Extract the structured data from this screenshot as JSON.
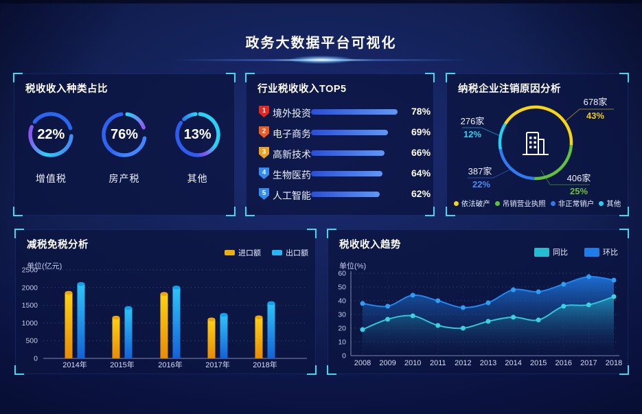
{
  "page": {
    "title": "政务大数据平台可视化"
  },
  "accent": {
    "bracket": "#38dcf5",
    "panel_border": "#2e50be"
  },
  "chart_data": [
    {
      "id": "tax_type_rings",
      "type": "pie",
      "title": "税收收入种类占比",
      "rings": [
        {
          "label": "增值税",
          "value": 22,
          "display": "22%",
          "colors": [
            "#2a66f0",
            "#2bd2f8",
            "#8a55f0",
            "#3f8ef5"
          ]
        },
        {
          "label": "房产税",
          "value": 76,
          "display": "76%",
          "colors": [
            "#2d64f2",
            "#2bd0f5",
            "#9558f2",
            "#3f86ff"
          ]
        },
        {
          "label": "其他",
          "value": 13,
          "display": "13%",
          "colors": [
            "#2e7cf5",
            "#2bd0f5",
            "#8a55f0",
            "#2d5cf0"
          ]
        }
      ]
    },
    {
      "id": "industry_top5",
      "type": "bar",
      "title": "行业税收收入TOP5",
      "items": [
        {
          "rank": "1",
          "label": "境外投资",
          "value": 78,
          "pct": "78%",
          "badge_color": "#e6271f"
        },
        {
          "rank": "2",
          "label": "电子商务",
          "value": 69,
          "pct": "69%",
          "badge_color": "#ef5a21"
        },
        {
          "rank": "3",
          "label": "高新技术",
          "value": 66,
          "pct": "66%",
          "badge_color": "#efa21c"
        },
        {
          "rank": "4",
          "label": "生物医药",
          "value": 64,
          "pct": "64%",
          "badge_color": "#2e8cf2"
        },
        {
          "rank": "5",
          "label": "人工智能",
          "value": 62,
          "pct": "62%",
          "badge_color": "#2e8cf2"
        }
      ],
      "bar_gradient": [
        "#2a4ed8",
        "#5e97f8"
      ]
    },
    {
      "id": "deregister_donut",
      "type": "pie",
      "title": "纳税企业注销原因分析",
      "slices": [
        {
          "label": "依法破产",
          "count": "678家",
          "value": 43,
          "pct": "43%",
          "color": "#f7d414"
        },
        {
          "label": "吊销营业执照",
          "count": "406家",
          "value": 25,
          "pct": "25%",
          "color": "#5fc13d"
        },
        {
          "label": "非正常销户",
          "count": "387家",
          "value": 22,
          "pct": "22%",
          "color": "#2e7cf0"
        },
        {
          "label": "其他",
          "count": "276家",
          "value": 12,
          "pct": "12%",
          "color": "#26d0f2"
        }
      ],
      "pct_colors": [
        "#f0c818",
        "#6cc03c",
        "#4f8af5",
        "#28d2f0"
      ]
    },
    {
      "id": "tax_reduction",
      "type": "bar",
      "title": "减税免税分析",
      "unit": "单位(亿元)",
      "categories": [
        "2014年",
        "2015年",
        "2016年",
        "2017年",
        "2018年"
      ],
      "series": [
        {
          "name": "进口额",
          "color": "#e9b10e",
          "values": [
            1850,
            1150,
            1820,
            1100,
            1160
          ]
        },
        {
          "name": "出口额",
          "color": "#29b7f2",
          "values": [
            2100,
            1420,
            2000,
            1230,
            1560
          ]
        }
      ],
      "ylim": [
        0,
        2500
      ],
      "yticks": [
        0,
        500,
        1000,
        1500,
        2000,
        2500
      ]
    },
    {
      "id": "tax_trend",
      "type": "area",
      "title": "税收收入趋势",
      "unit": "单位(%)",
      "x": [
        "2008",
        "2009",
        "2010",
        "2011",
        "2012",
        "2013",
        "2014",
        "2015",
        "2016",
        "2017",
        "2018"
      ],
      "series": [
        {
          "name": "同比",
          "color": "#26bcd0",
          "values": [
            19,
            26.5,
            29,
            22,
            20,
            25,
            28,
            26,
            36,
            37,
            43
          ]
        },
        {
          "name": "环比",
          "color": "#1f7dea",
          "values": [
            38,
            36,
            44,
            40,
            35,
            38.5,
            48,
            46.5,
            52,
            57.5,
            55
          ]
        }
      ],
      "ylim": [
        0,
        60
      ],
      "yticks": [
        0,
        10,
        20,
        30,
        40,
        50,
        60
      ]
    }
  ]
}
